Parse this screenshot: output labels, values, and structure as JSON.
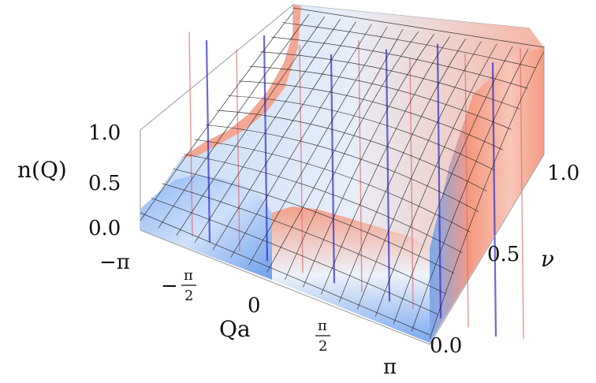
{
  "chart_data": {
    "type": "surface3d",
    "title": "",
    "axes": {
      "x": {
        "label": "Qa",
        "range": [
          -3.14159,
          3.14159
        ],
        "ticks": [
          {
            "value": -3.14159,
            "label": "−π"
          },
          {
            "value": -1.5708,
            "label": "−",
            "frac_num": "π",
            "frac_den": "2"
          },
          {
            "value": 0,
            "label": "0"
          },
          {
            "value": 1.5708,
            "label": "",
            "frac_num": "π",
            "frac_den": "2"
          },
          {
            "value": 3.14159,
            "label": "π"
          }
        ]
      },
      "y": {
        "label": "ν",
        "range": [
          0,
          1.1
        ],
        "ticks": [
          {
            "value": 0.0,
            "label": "0.0"
          },
          {
            "value": 0.5,
            "label": "0.5"
          },
          {
            "value": 1.0,
            "label": "1.0"
          }
        ]
      },
      "z": {
        "label": "n(Q)",
        "range": [
          0,
          1.0
        ],
        "ticks": [
          {
            "value": 0.0,
            "label": "0.0"
          },
          {
            "value": 0.5,
            "label": "0.5"
          },
          {
            "value": 1.0,
            "label": "1.0"
          }
        ]
      }
    },
    "surface_profile": {
      "description_values_Qa": [
        -3.14159,
        -2.356,
        -1.5708,
        -0.785,
        0,
        0.785,
        1.5708,
        2.356,
        3.14159
      ],
      "n_at_nu_0": [
        0.0,
        0.0,
        0.0,
        0.0,
        0.6,
        0.75,
        0.75,
        0.8,
        0.8
      ],
      "n_at_nu_1": [
        1.0,
        0.75,
        0.65,
        0.7,
        0.75,
        0.8,
        0.85,
        0.9,
        0.95
      ]
    },
    "colors": {
      "low": "#6fa6ee",
      "mid": "#e8eef8",
      "high": "#f59a82",
      "stripe": "#2a2ad0",
      "mesh": "#1a1a1a",
      "box": "#9a9a9a"
    },
    "grid": false,
    "box": true
  }
}
